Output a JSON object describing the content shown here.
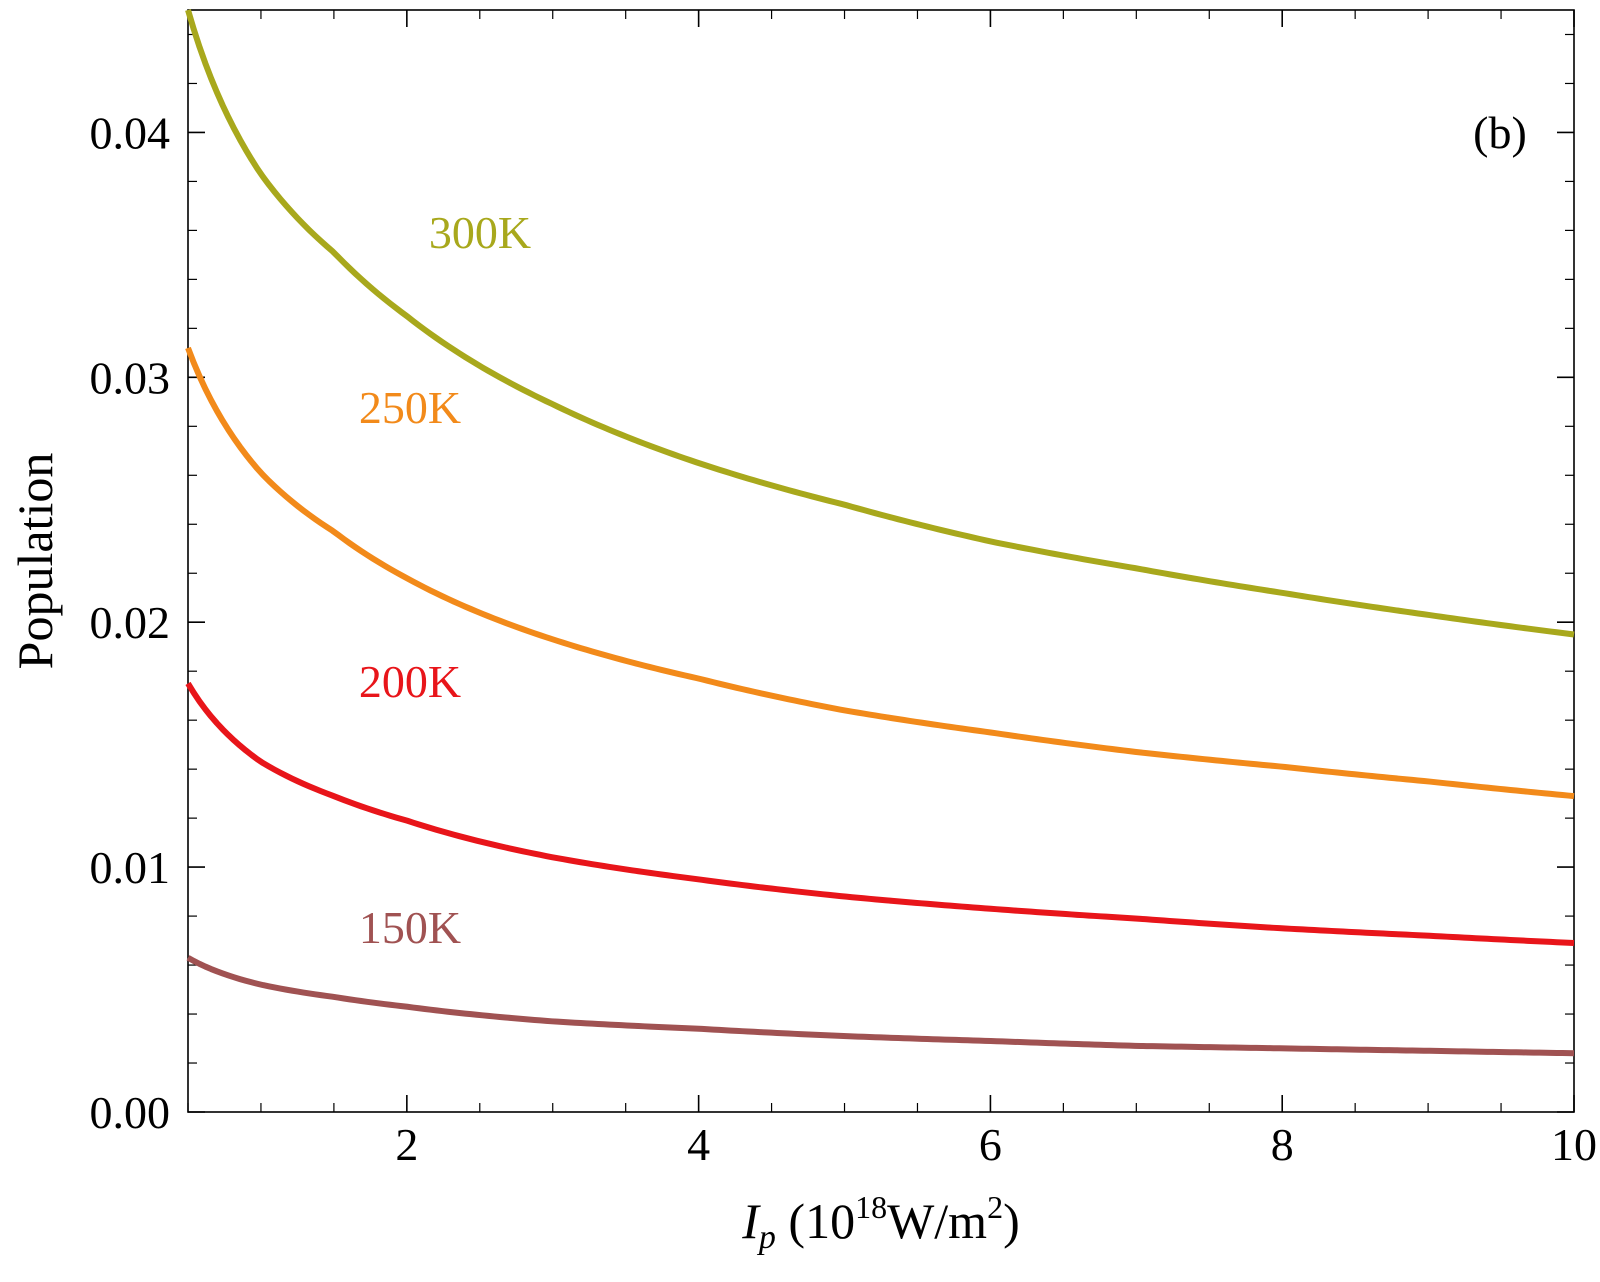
{
  "chart_data": {
    "type": "line",
    "panel_label": "(b)",
    "xlabel": {
      "symbol": "I",
      "subscript": "p",
      "unit_open": " (10",
      "unit_exp": "18",
      "unit_mid": "W/m",
      "unit_exp2": "2",
      "unit_close": ")"
    },
    "ylabel": "Population",
    "xlim": [
      0.5,
      10
    ],
    "ylim": [
      0,
      0.045
    ],
    "x_ticks": [
      2,
      4,
      6,
      8,
      10
    ],
    "x_tick_labels": [
      "2",
      "4",
      "6",
      "8",
      "10"
    ],
    "y_ticks": [
      0,
      0.01,
      0.02,
      0.03,
      0.04
    ],
    "y_tick_labels": [
      "0.00",
      "0.01",
      "0.02",
      "0.03",
      "0.04"
    ],
    "grid": false,
    "series": [
      {
        "name": "300K",
        "color": "#a8a81c",
        "x": [
          0.5,
          1,
          1.5,
          2,
          3,
          4,
          5,
          6,
          7,
          8,
          9,
          10
        ],
        "values": [
          0.045,
          0.0383,
          0.0351,
          0.0325,
          0.0289,
          0.0265,
          0.0248,
          0.0233,
          0.0222,
          0.0212,
          0.0203,
          0.0195
        ]
      },
      {
        "name": "250K",
        "color": "#f28a1a",
        "x": [
          0.5,
          1,
          1.5,
          2,
          3,
          4,
          5,
          6,
          7,
          8,
          9,
          10
        ],
        "values": [
          0.0312,
          0.0261,
          0.0237,
          0.0218,
          0.0193,
          0.0177,
          0.0164,
          0.0155,
          0.0147,
          0.0141,
          0.0135,
          0.0129
        ]
      },
      {
        "name": "200K",
        "color": "#e8151a",
        "x": [
          0.5,
          1,
          1.5,
          2,
          3,
          4,
          5,
          6,
          7,
          8,
          9,
          10
        ],
        "values": [
          0.0175,
          0.0143,
          0.0129,
          0.0119,
          0.0104,
          0.0095,
          0.0088,
          0.0083,
          0.0079,
          0.0075,
          0.0072,
          0.0069
        ]
      },
      {
        "name": "150K",
        "color": "#a05252",
        "x": [
          0.5,
          1,
          1.5,
          2,
          3,
          4,
          5,
          6,
          7,
          8,
          9,
          10
        ],
        "values": [
          0.0063,
          0.0052,
          0.0047,
          0.0043,
          0.0037,
          0.0034,
          0.0031,
          0.0029,
          0.0027,
          0.0026,
          0.0025,
          0.0024
        ]
      }
    ]
  }
}
